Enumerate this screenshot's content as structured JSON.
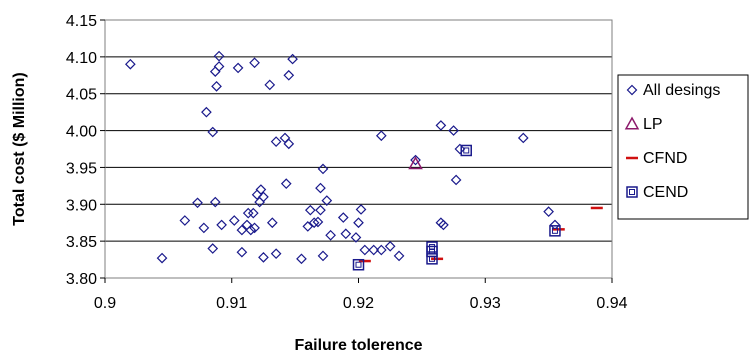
{
  "chart_data": {
    "type": "scatter",
    "title": "",
    "xlabel": "Failure tolerence",
    "ylabel": "Total cost ($ Million)",
    "xlim": [
      0.9,
      0.94
    ],
    "ylim": [
      3.8,
      4.15
    ],
    "xticks": [
      "0.9",
      "0.91",
      "0.92",
      "0.93",
      "0.94"
    ],
    "yticks": [
      "3.80",
      "3.85",
      "3.90",
      "3.95",
      "4.00",
      "4.05",
      "4.10",
      "4.15"
    ],
    "grid": "horizontal",
    "legend_position": "right",
    "series": [
      {
        "name": "All desings",
        "marker": "diamond-open",
        "color": "#1a1a8c",
        "points": [
          [
            0.902,
            4.09
          ],
          [
            0.909,
            4.101
          ],
          [
            0.9087,
            4.08
          ],
          [
            0.909,
            4.087
          ],
          [
            0.9088,
            4.06
          ],
          [
            0.9105,
            4.085
          ],
          [
            0.9118,
            4.092
          ],
          [
            0.9148,
            4.097
          ],
          [
            0.9145,
            4.075
          ],
          [
            0.913,
            4.062
          ],
          [
            0.908,
            4.025
          ],
          [
            0.9085,
            3.998
          ],
          [
            0.9135,
            3.985
          ],
          [
            0.9142,
            3.99
          ],
          [
            0.9145,
            3.982
          ],
          [
            0.9143,
            3.928
          ],
          [
            0.9172,
            3.948
          ],
          [
            0.9218,
            3.993
          ],
          [
            0.9245,
            3.96
          ],
          [
            0.9265,
            4.007
          ],
          [
            0.9275,
            4.0
          ],
          [
            0.928,
            3.975
          ],
          [
            0.9277,
            3.933
          ],
          [
            0.933,
            3.99
          ],
          [
            0.9087,
            3.903
          ],
          [
            0.9073,
            3.902
          ],
          [
            0.9063,
            3.878
          ],
          [
            0.9078,
            3.868
          ],
          [
            0.9092,
            3.872
          ],
          [
            0.9102,
            3.878
          ],
          [
            0.9112,
            3.872
          ],
          [
            0.9115,
            3.865
          ],
          [
            0.9117,
            3.888
          ],
          [
            0.912,
            3.913
          ],
          [
            0.9123,
            3.92
          ],
          [
            0.9125,
            3.91
          ],
          [
            0.9122,
            3.903
          ],
          [
            0.9132,
            3.875
          ],
          [
            0.9113,
            3.888
          ],
          [
            0.9108,
            3.865
          ],
          [
            0.9118,
            3.868
          ],
          [
            0.9108,
            3.835
          ],
          [
            0.9085,
            3.84
          ],
          [
            0.9045,
            3.827
          ],
          [
            0.9125,
            3.828
          ],
          [
            0.9135,
            3.833
          ],
          [
            0.9155,
            3.826
          ],
          [
            0.916,
            3.87
          ],
          [
            0.9162,
            3.892
          ],
          [
            0.9165,
            3.875
          ],
          [
            0.917,
            3.892
          ],
          [
            0.9175,
            3.905
          ],
          [
            0.917,
            3.922
          ],
          [
            0.9168,
            3.876
          ],
          [
            0.9178,
            3.858
          ],
          [
            0.9172,
            3.83
          ],
          [
            0.919,
            3.86
          ],
          [
            0.9188,
            3.882
          ],
          [
            0.9198,
            3.855
          ],
          [
            0.92,
            3.875
          ],
          [
            0.9202,
            3.893
          ],
          [
            0.9205,
            3.838
          ],
          [
            0.9212,
            3.838
          ],
          [
            0.9218,
            3.838
          ],
          [
            0.9225,
            3.843
          ],
          [
            0.9232,
            3.83
          ],
          [
            0.9265,
            3.875
          ],
          [
            0.9267,
            3.872
          ],
          [
            0.935,
            3.89
          ],
          [
            0.9355,
            3.872
          ]
        ]
      },
      {
        "name": "LP",
        "marker": "triangle-open",
        "color": "#8c1a6b",
        "points": [
          [
            0.9245,
            3.955
          ]
        ]
      },
      {
        "name": "CFND",
        "marker": "dash",
        "color": "#d01010",
        "points": [
          [
            0.9205,
            3.823
          ],
          [
            0.9262,
            3.826
          ],
          [
            0.9358,
            3.866
          ],
          [
            0.9388,
            3.895
          ]
        ]
      },
      {
        "name": "CEND",
        "marker": "square-open",
        "color": "#1a1a8c",
        "points": [
          [
            0.92,
            3.818
          ],
          [
            0.9258,
            3.826
          ],
          [
            0.9258,
            3.836
          ],
          [
            0.9258,
            3.842
          ],
          [
            0.9285,
            3.973
          ],
          [
            0.9355,
            3.864
          ]
        ]
      }
    ]
  }
}
